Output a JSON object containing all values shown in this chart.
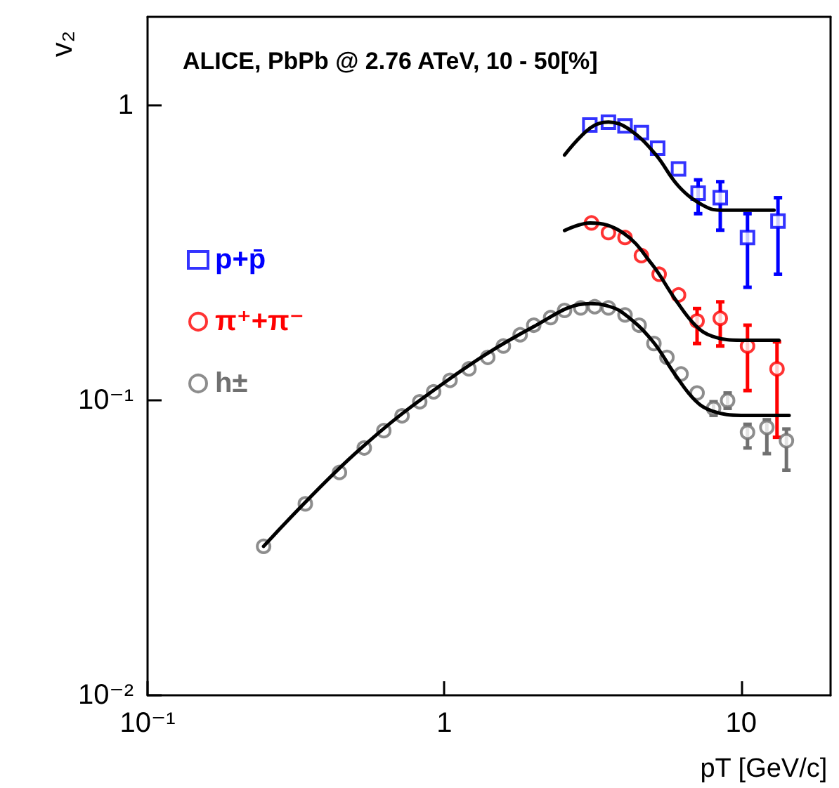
{
  "chart_data": {
    "type": "scatter",
    "title": "ALICE, PbPb @ 2.76 ATeV, 10 - 50[%]",
    "xlabel": "pT [GeV/c]",
    "ylabel": "v₂",
    "log": "xy",
    "grid": false,
    "legend": "left",
    "xlim": [
      0.1,
      20
    ],
    "xticks": [
      {
        "value": 0.1,
        "label": "10⁻¹"
      },
      1,
      10
    ],
    "ylim": [
      0.01,
      2
    ],
    "yticks": [
      {
        "value": 0.01,
        "label": "10⁻²"
      },
      {
        "value": 0.1,
        "label": "10⁻¹"
      },
      1
    ],
    "series": [
      {
        "name": "p+p̄",
        "color": "#0000ff",
        "marker": "square",
        "x": [
          3.09,
          3.57,
          4.06,
          4.61,
          5.23,
          6.15,
          7.16,
          8.5,
          10.5,
          13.3
        ],
        "values": [
          0.859,
          0.878,
          0.853,
          0.81,
          0.717,
          0.61,
          0.505,
          0.487,
          0.357,
          0.406
        ],
        "errors": [
          null,
          null,
          null,
          null,
          null,
          null,
          [
            0.43,
            0.56
          ],
          [
            0.378,
            0.552
          ],
          [
            0.242,
            0.43
          ],
          [
            0.268,
            0.487
          ]
        ]
      },
      {
        "name": "π⁺+π⁻",
        "color": "#ff0000",
        "marker": "circle",
        "x": [
          3.13,
          3.57,
          4.06,
          4.61,
          5.29,
          6.15,
          7.1,
          8.5,
          10.5,
          13.2
        ],
        "values": [
          0.4,
          0.371,
          0.357,
          0.31,
          0.268,
          0.228,
          0.186,
          0.19,
          0.153,
          0.128
        ],
        "errors": [
          null,
          null,
          null,
          null,
          null,
          null,
          [
            0.156,
            0.205
          ],
          [
            0.153,
            0.216
          ],
          [
            0.108,
            0.18
          ],
          [
            0.075,
            0.158
          ]
        ]
      },
      {
        "name": "h±",
        "color": "#707070",
        "marker": "circle",
        "x": [
          0.246,
          0.34,
          0.443,
          0.537,
          0.625,
          0.72,
          0.826,
          0.92,
          1.045,
          1.21,
          1.4,
          1.58,
          1.8,
          2.0,
          2.28,
          2.54,
          2.88,
          3.21,
          3.57,
          4.06,
          4.53,
          5.08,
          5.62,
          6.27,
          7.1,
          8.07,
          9.0,
          10.5,
          12.2,
          14.2
        ],
        "values": [
          0.032,
          0.0446,
          0.057,
          0.069,
          0.079,
          0.0887,
          0.099,
          0.107,
          0.117,
          0.128,
          0.14,
          0.153,
          0.167,
          0.18,
          0.191,
          0.202,
          0.206,
          0.208,
          0.206,
          0.195,
          0.18,
          0.156,
          0.14,
          0.123,
          0.106,
          0.094,
          0.1,
          0.078,
          0.081,
          0.073
        ],
        "errors": [
          null,
          null,
          null,
          null,
          null,
          null,
          null,
          null,
          null,
          null,
          null,
          null,
          null,
          null,
          null,
          null,
          null,
          null,
          null,
          null,
          null,
          null,
          null,
          null,
          null,
          [
            0.089,
            0.099
          ],
          [
            0.094,
            0.106
          ],
          [
            0.069,
            0.083
          ],
          [
            0.066,
            0.086
          ],
          [
            0.058,
            0.08
          ]
        ]
      },
      {
        "type": "line",
        "color": "#000000",
        "marker": "none",
        "x": [
          2.54,
          3.1,
          3.57,
          4.2,
          5.13,
          6.15,
          7.4,
          8.5,
          10,
          12.9
        ],
        "values": [
          0.68,
          0.84,
          0.88,
          0.83,
          0.686,
          0.533,
          0.46,
          0.442,
          0.442,
          0.442
        ]
      },
      {
        "type": "line",
        "color": "#000000",
        "marker": "none",
        "x": [
          2.54,
          3.1,
          4,
          5,
          6,
          7,
          8,
          10,
          13.4
        ],
        "values": [
          0.377,
          0.4,
          0.37,
          0.29,
          0.22,
          0.18,
          0.165,
          0.16,
          0.16
        ]
      },
      {
        "type": "line",
        "color": "#000000",
        "marker": "none",
        "x": [
          0.246,
          0.5,
          1,
          2,
          3.1,
          3.5,
          4,
          5,
          6,
          7,
          8,
          10,
          14.5
        ],
        "values": [
          0.032,
          0.066,
          0.115,
          0.178,
          0.213,
          0.21,
          0.198,
          0.16,
          0.122,
          0.1,
          0.092,
          0.089,
          0.089
        ]
      }
    ]
  }
}
